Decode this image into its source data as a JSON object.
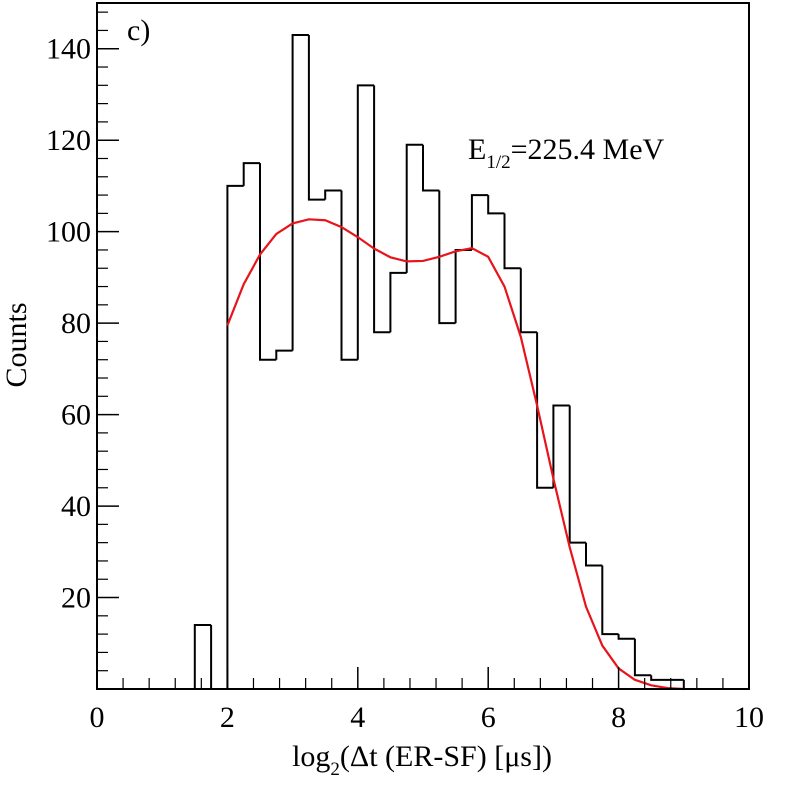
{
  "chart_data": {
    "type": "histogram",
    "panel_label": "c)",
    "annotation": {
      "main": "E",
      "subscript": "1/2",
      "value": "=225.4 MeV"
    },
    "xlabel": {
      "prefix": "log",
      "subscript": "2",
      "rest": "(Δt (ER-SF) [μs])"
    },
    "ylabel": "Counts",
    "xlim": [
      0,
      10
    ],
    "ylim": [
      0,
      150
    ],
    "x_ticks": [
      0,
      2,
      4,
      6,
      8,
      10
    ],
    "x_tick_labels": [
      "0",
      "2",
      "4",
      "6",
      "8",
      "10"
    ],
    "y_ticks": [
      20,
      40,
      60,
      80,
      100,
      120,
      140
    ],
    "y_tick_labels": [
      "20",
      "40",
      "60",
      "80",
      "100",
      "120",
      "140"
    ],
    "bin_edges": [
      0,
      0.25,
      0.5,
      0.75,
      1,
      1.25,
      1.5,
      1.75,
      2,
      2.25,
      2.5,
      2.75,
      3,
      3.25,
      3.5,
      3.75,
      4,
      4.25,
      4.5,
      4.75,
      5,
      5.25,
      5.5,
      5.75,
      6,
      6.25,
      6.5,
      6.75,
      7,
      7.25,
      7.5,
      7.75,
      8,
      8.25,
      8.5,
      8.75,
      9,
      9.25,
      9.5,
      9.75,
      10
    ],
    "counts": [
      0,
      0,
      0,
      0,
      0,
      0,
      14,
      0,
      110,
      115,
      72,
      74,
      143,
      107,
      109,
      72,
      132,
      78,
      91,
      119,
      109,
      80,
      96,
      108,
      104,
      92,
      78,
      44,
      62,
      32,
      27,
      12,
      11,
      3,
      2,
      2,
      0,
      0,
      0,
      0
    ],
    "fit_curve": {
      "color": "#e8141c",
      "x": [
        2.0,
        2.25,
        2.5,
        2.75,
        3.0,
        3.25,
        3.5,
        3.75,
        4.0,
        4.25,
        4.5,
        4.75,
        5.0,
        5.25,
        5.5,
        5.75,
        6.0,
        6.25,
        6.5,
        6.75,
        7.0,
        7.25,
        7.5,
        7.75,
        8.0,
        8.25,
        8.5,
        8.75,
        9.0
      ],
      "y": [
        79.5,
        88.5,
        95,
        99.5,
        101.8,
        102.7,
        102.5,
        101,
        98.8,
        96.3,
        94.4,
        93.5,
        93.6,
        94.5,
        95.7,
        96.4,
        94.5,
        88,
        77,
        62,
        46,
        31,
        18,
        9.5,
        4.5,
        2,
        0.8,
        0.2,
        0
      ]
    },
    "histogram_color": "#000000"
  }
}
